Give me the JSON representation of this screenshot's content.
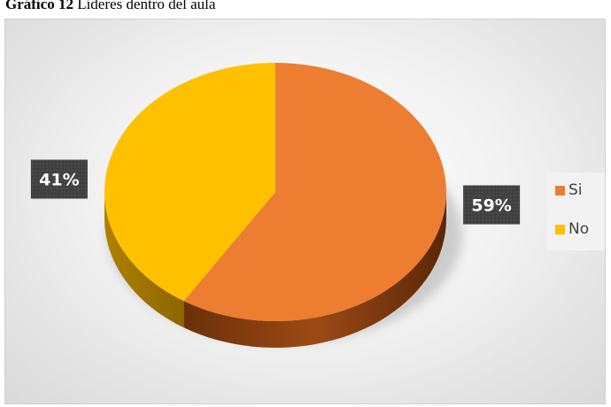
{
  "caption": {
    "bold": "Gráfico 12",
    "text": " Líderes dentro del aula"
  },
  "colors": {
    "si": "#ED7D31",
    "no": "#FFC000",
    "label_bg": "#404040",
    "label_text": "#ffffff"
  },
  "chart_data": {
    "type": "pie",
    "style": "3d",
    "categories": [
      "Si",
      "No"
    ],
    "values": [
      59,
      41
    ],
    "data_labels": [
      "59%",
      "41%"
    ],
    "legend_position": "right"
  }
}
